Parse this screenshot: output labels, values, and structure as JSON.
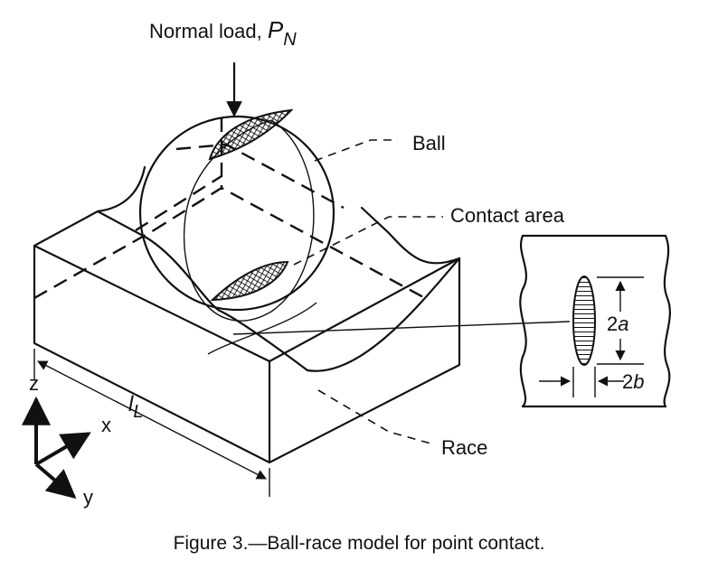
{
  "labels": {
    "normal_load": "Normal load, ",
    "load_symbol": "P",
    "load_subscript": "N",
    "ball": "Ball",
    "contact_area": "Contact area",
    "race": "Race",
    "length_symbol": "l",
    "length_subscript": "L",
    "axis_z": "z",
    "axis_x": "x",
    "axis_y": "y",
    "major_axis_num": "2",
    "major_axis_sym": "a",
    "minor_axis_num": "2",
    "minor_axis_sym": "b"
  },
  "caption": "Figure 3.—Ball-race model for point contact."
}
